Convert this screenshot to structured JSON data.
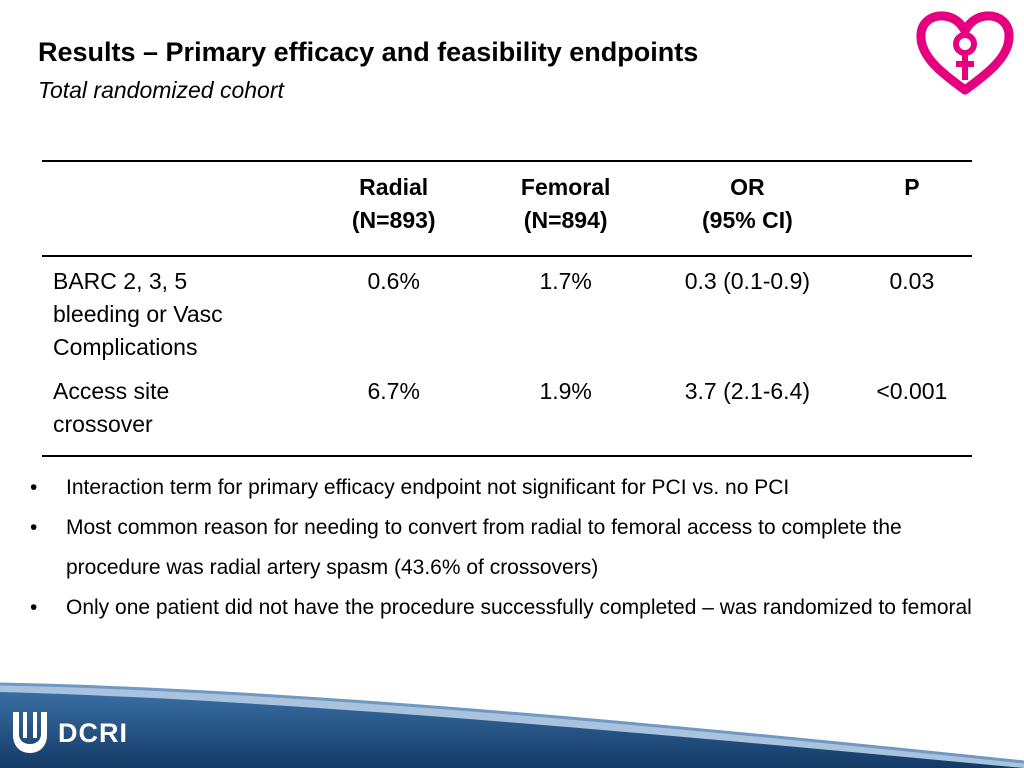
{
  "slide": {
    "title": "Results – Primary efficacy and feasibility endpoints",
    "subtitle": "Total randomized cohort"
  },
  "table": {
    "headers": [
      {
        "line1": "",
        "line2": ""
      },
      {
        "line1": "Radial",
        "line2": "(N=893)"
      },
      {
        "line1": "Femoral",
        "line2": "(N=894)"
      },
      {
        "line1": "OR",
        "line2": "(95% CI)"
      },
      {
        "line1": "P",
        "line2": ""
      }
    ],
    "rows": [
      {
        "label_lines": [
          "BARC 2, 3, 5",
          "bleeding or Vasc",
          "Complications"
        ],
        "radial": "0.6%",
        "femoral": "1.7%",
        "or": "0.3 (0.1-0.9)",
        "p": "0.03"
      },
      {
        "label_lines": [
          "Access site",
          "crossover"
        ],
        "radial": "6.7%",
        "femoral": "1.9%",
        "or": "3.7 (2.1-6.4)",
        "p": "<0.001"
      }
    ]
  },
  "bullets": {
    "marker": "•",
    "items": [
      "Interaction term for primary efficacy endpoint not significant for PCI vs. no PCI",
      "Most common reason for needing to convert from radial to femoral access to complete the procedure was radial artery spasm (43.6% of crossovers)",
      "Only one patient did not have the procedure successfully completed – was randomized to femoral"
    ]
  },
  "footer": {
    "logo_text": "DCRI",
    "logo_icon": "duke-shield-icon"
  },
  "colors": {
    "heart_logo": "#e4007e",
    "footer_band": "#1c4a7a",
    "footer_accent": "#6f98c3"
  }
}
